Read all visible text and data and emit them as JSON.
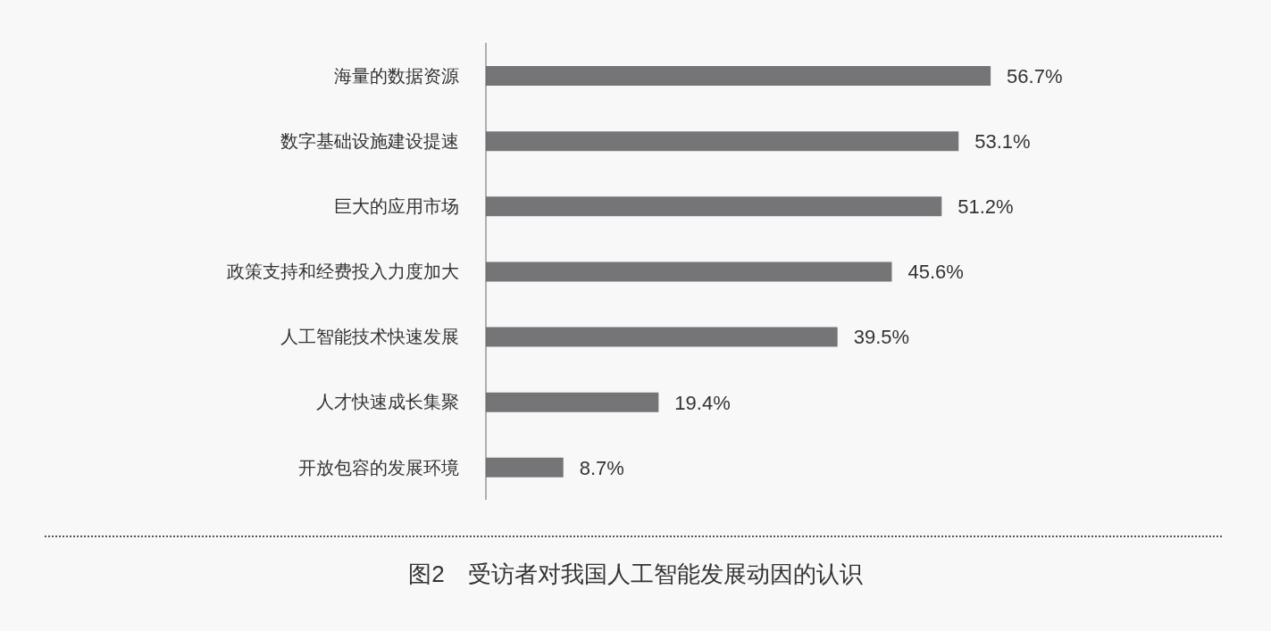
{
  "chart_data": {
    "type": "bar",
    "orientation": "horizontal",
    "title": "图2　受访者对我国人工智能发展动因的认识",
    "categories": [
      "海量的数据资源",
      "数字基础设施建设提速",
      "巨大的应用市场",
      "政策支持和经费投入力度加大",
      "人工智能技术快速发展",
      "人才快速成长集聚",
      "开放包容的发展环境"
    ],
    "values": [
      56.7,
      53.1,
      51.2,
      45.6,
      39.5,
      19.4,
      8.7
    ],
    "value_labels": [
      "56.7%",
      "53.1%",
      "51.2%",
      "45.6%",
      "39.5%",
      "19.4%",
      "8.7%"
    ],
    "color": "#757578"
  }
}
